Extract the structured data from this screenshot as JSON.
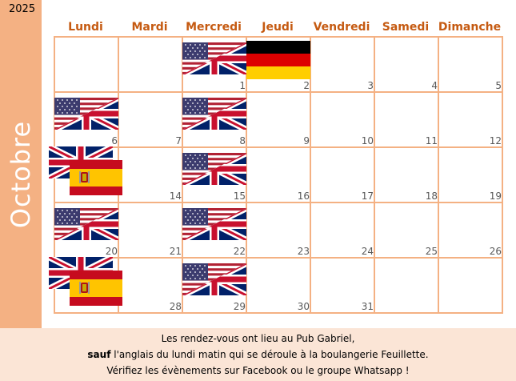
{
  "year": "2025",
  "month": "Octobre",
  "weekdays": [
    "Lundi",
    "Mardi",
    "Mercredi",
    "Jeudi",
    "Vendredi",
    "Samedi",
    "Dimanche"
  ],
  "days": [
    {
      "n": "",
      "flags": []
    },
    {
      "n": "",
      "flags": []
    },
    {
      "n": "1",
      "flags": [
        "us-uk-flag"
      ]
    },
    {
      "n": "2",
      "flags": [
        "germany-flag"
      ]
    },
    {
      "n": "3",
      "flags": []
    },
    {
      "n": "4",
      "flags": []
    },
    {
      "n": "5",
      "flags": []
    },
    {
      "n": "6",
      "flags": [
        "us-uk-flag"
      ]
    },
    {
      "n": "7",
      "flags": []
    },
    {
      "n": "8",
      "flags": [
        "us-uk-flag"
      ]
    },
    {
      "n": "9",
      "flags": []
    },
    {
      "n": "10",
      "flags": []
    },
    {
      "n": "11",
      "flags": []
    },
    {
      "n": "12",
      "flags": []
    },
    {
      "n": "",
      "flags": [
        "uk-flag",
        "spain-flag"
      ]
    },
    {
      "n": "14",
      "flags": []
    },
    {
      "n": "15",
      "flags": [
        "us-uk-flag"
      ]
    },
    {
      "n": "16",
      "flags": []
    },
    {
      "n": "17",
      "flags": []
    },
    {
      "n": "18",
      "flags": []
    },
    {
      "n": "19",
      "flags": []
    },
    {
      "n": "20",
      "flags": [
        "us-uk-flag"
      ]
    },
    {
      "n": "21",
      "flags": []
    },
    {
      "n": "22",
      "flags": [
        "us-uk-flag"
      ]
    },
    {
      "n": "23",
      "flags": []
    },
    {
      "n": "24",
      "flags": []
    },
    {
      "n": "25",
      "flags": []
    },
    {
      "n": "26",
      "flags": []
    },
    {
      "n": "",
      "flags": [
        "uk-flag",
        "spain-flag"
      ]
    },
    {
      "n": "28",
      "flags": []
    },
    {
      "n": "29",
      "flags": [
        "us-uk-flag"
      ]
    },
    {
      "n": "30",
      "flags": []
    },
    {
      "n": "31",
      "flags": []
    },
    {
      "n": "",
      "flags": []
    },
    {
      "n": "",
      "flags": []
    }
  ],
  "footer": {
    "line1": "Les rendez-vous ont lieu au Pub Gabriel,",
    "line2_bold": "sauf",
    "line2_rest": " l'anglais du lundi matin qui se déroule à la boulangerie Feuillette.",
    "line3": "Vérifiez les évènements sur Facebook ou le groupe Whatsapp !"
  },
  "colors": {
    "accent": "#f4b183",
    "weekday_text": "#c55a11",
    "footer_bg": "#fbe5d6"
  }
}
